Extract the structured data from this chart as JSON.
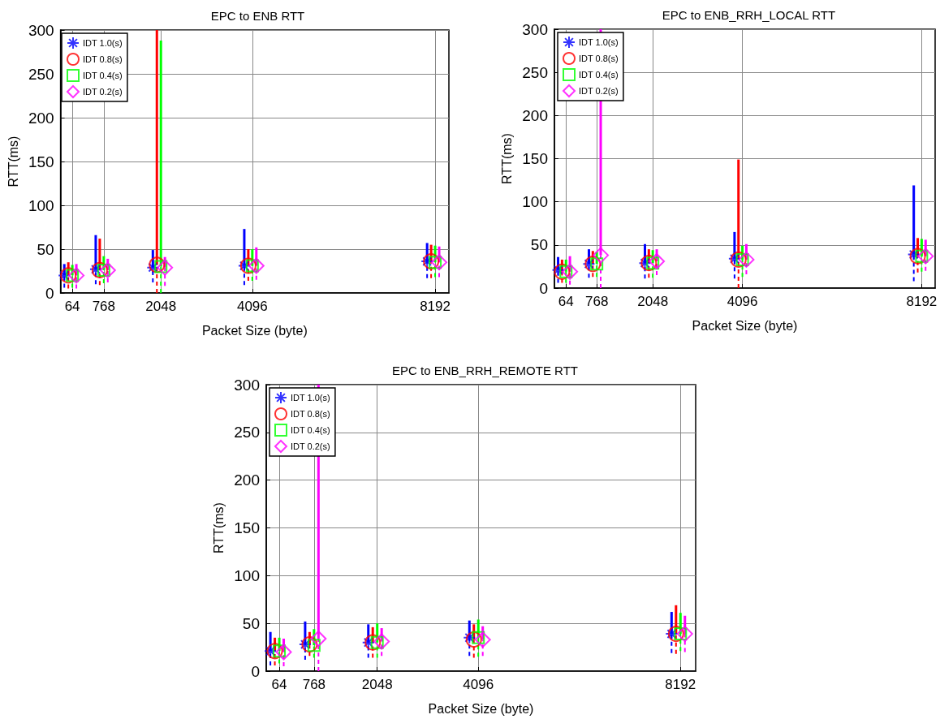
{
  "chart_data": [
    {
      "type": "scatter",
      "title": "EPC to ENB RTT",
      "xlabel": "Packet Size (byte)",
      "ylabel": "RTT(ms)",
      "xlim": [
        -200,
        8500
      ],
      "xticks": [
        64,
        768,
        2048,
        4096,
        8192
      ],
      "ylim": [
        0,
        300
      ],
      "yticks": [
        0,
        50,
        100,
        150,
        200,
        250,
        300
      ],
      "grid": true,
      "legend": "top left",
      "series": [
        {
          "name": "IDT 1.0(s)",
          "color": "#0000ff",
          "marker": "cross",
          "x": [
            -116,
            588,
            1868,
            3916,
            8012
          ],
          "values": [
            20,
            27,
            29,
            31,
            36
          ],
          "errors": [
            [
              6,
              33
            ],
            [
              10,
              66
            ],
            [
              12,
              49
            ],
            [
              9,
              73
            ],
            [
              17,
              57
            ]
          ]
        },
        {
          "name": "IDT 0.8(s)",
          "color": "#ff0000",
          "marker": "circle",
          "x": [
            -26,
            678,
            1958,
            4006,
            8102
          ],
          "values": [
            20,
            26,
            32,
            31,
            36
          ],
          "errors": [
            [
              5,
              35
            ],
            [
              9,
              62
            ],
            [
              0,
              300
            ],
            [
              14,
              50
            ],
            [
              17,
              55
            ]
          ]
        },
        {
          "name": "IDT 0.4(s)",
          "color": "#00ff00",
          "marker": "square",
          "x": [
            64,
            768,
            2048,
            4096,
            8192
          ],
          "values": [
            20,
            26,
            30,
            31,
            35
          ],
          "errors": [
            [
              6,
              32
            ],
            [
              11,
              42
            ],
            [
              0,
              288
            ],
            [
              14,
              50
            ],
            [
              18,
              54
            ]
          ]
        },
        {
          "name": "IDT 0.2(s)",
          "color": "#ff00ff",
          "marker": "diamond",
          "x": [
            154,
            858,
            2138,
            4186,
            8282
          ],
          "values": [
            20,
            26,
            29,
            31,
            35
          ],
          "errors": [
            [
              5,
              33
            ],
            [
              12,
              39
            ],
            [
              8,
              41
            ],
            [
              15,
              52
            ],
            [
              18,
              53
            ]
          ]
        }
      ]
    },
    {
      "type": "scatter",
      "title": "EPC to ENB_RRH_LOCAL RTT",
      "xlabel": "Packet Size (byte)",
      "ylabel": "RTT(ms)",
      "xlim": [
        -200,
        8500
      ],
      "xticks": [
        64,
        768,
        2048,
        4096,
        8192
      ],
      "ylim": [
        0,
        300
      ],
      "yticks": [
        0,
        50,
        100,
        150,
        200,
        250,
        300
      ],
      "grid": true,
      "legend": "top left",
      "series": [
        {
          "name": "IDT 1.0(s)",
          "color": "#0000ff",
          "marker": "cross",
          "x": [
            -116,
            588,
            1868,
            3916,
            8012
          ],
          "values": [
            21,
            28,
            29,
            34,
            39
          ],
          "errors": [
            [
              6,
              36
            ],
            [
              12,
              45
            ],
            [
              11,
              51
            ],
            [
              11,
              65
            ],
            [
              8,
              119
            ]
          ]
        },
        {
          "name": "IDT 0.8(s)",
          "color": "#ff0000",
          "marker": "circle",
          "x": [
            -26,
            678,
            1958,
            4006,
            8102
          ],
          "values": [
            19,
            28,
            29,
            33,
            37
          ],
          "errors": [
            [
              6,
              33
            ],
            [
              13,
              43
            ],
            [
              12,
              45
            ],
            [
              0,
              149
            ],
            [
              18,
              58
            ]
          ]
        },
        {
          "name": "IDT 0.4(s)",
          "color": "#00ff00",
          "marker": "square",
          "x": [
            64,
            768,
            2048,
            4096,
            8192
          ],
          "values": [
            19,
            28,
            29,
            33,
            37
          ],
          "errors": [
            [
              6,
              33
            ],
            [
              13,
              42
            ],
            [
              12,
              44
            ],
            [
              13,
              49
            ],
            [
              19,
              57
            ]
          ]
        },
        {
          "name": "IDT 0.2(s)",
          "color": "#ff00ff",
          "marker": "diamond",
          "x": [
            154,
            858,
            2138,
            4186,
            8282
          ],
          "values": [
            19,
            38,
            31,
            33,
            37
          ],
          "errors": [
            [
              4,
              37
            ],
            [
              0,
              300
            ],
            [
              15,
              45
            ],
            [
              16,
              51
            ],
            [
              20,
              56
            ]
          ]
        }
      ]
    },
    {
      "type": "scatter",
      "title": "EPC to ENB_RRH_REMOTE RTT",
      "xlabel": "Packet Size (byte)",
      "ylabel": "RTT(ms)",
      "xlim": [
        -200,
        8500
      ],
      "xticks": [
        64,
        768,
        2048,
        4096,
        8192
      ],
      "ylim": [
        0,
        300
      ],
      "yticks": [
        0,
        50,
        100,
        150,
        200,
        250,
        300
      ],
      "grid": true,
      "legend": "top left",
      "series": [
        {
          "name": "IDT 1.0(s)",
          "color": "#0000ff",
          "marker": "cross",
          "x": [
            -116,
            588,
            1868,
            3916,
            8012
          ],
          "values": [
            21,
            28,
            30,
            35,
            39
          ],
          "errors": [
            [
              6,
              41
            ],
            [
              12,
              52
            ],
            [
              14,
              49
            ],
            [
              16,
              53
            ],
            [
              19,
              62
            ]
          ]
        },
        {
          "name": "IDT 0.8(s)",
          "color": "#ff0000",
          "marker": "circle",
          "x": [
            -26,
            678,
            1958,
            4006,
            8102
          ],
          "values": [
            21,
            28,
            30,
            33,
            39
          ],
          "errors": [
            [
              6,
              35
            ],
            [
              16,
              41
            ],
            [
              14,
              46
            ],
            [
              14,
              49
            ],
            [
              18,
              69
            ]
          ]
        },
        {
          "name": "IDT 0.4(s)",
          "color": "#00ff00",
          "marker": "square",
          "x": [
            64,
            768,
            2048,
            4096,
            8192
          ],
          "values": [
            21,
            27,
            30,
            35,
            39
          ],
          "errors": [
            [
              8,
              35
            ],
            [
              14,
              44
            ],
            [
              14,
              50
            ],
            [
              15,
              54
            ],
            [
              21,
              61
            ]
          ]
        },
        {
          "name": "IDT 0.2(s)",
          "color": "#ff00ff",
          "marker": "diamond",
          "x": [
            154,
            858,
            2138,
            4186,
            8282
          ],
          "values": [
            20,
            34,
            31,
            33,
            39
          ],
          "errors": [
            [
              5,
              34
            ],
            [
              0,
              300
            ],
            [
              16,
              45
            ],
            [
              16,
              47
            ],
            [
              20,
              58
            ]
          ]
        }
      ]
    }
  ]
}
